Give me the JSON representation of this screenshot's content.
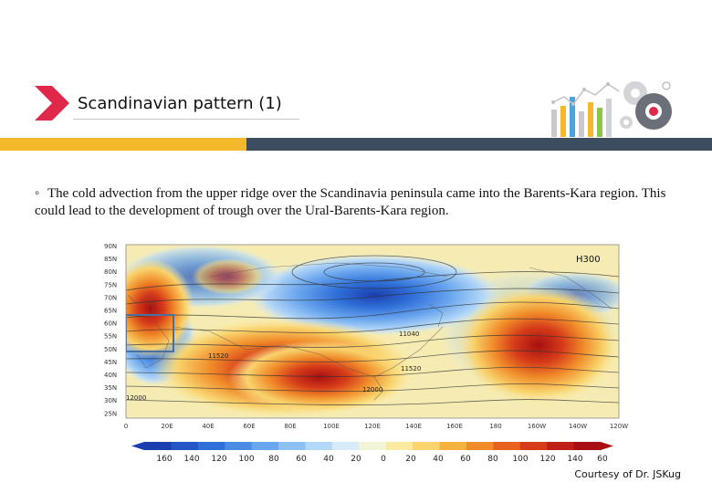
{
  "slide": {
    "title": "Scandinavian pattern (1)",
    "body_bullet": "◦",
    "body_text": "The cold advection from the upper ridge over the Scandinavia peninsula came into the Barents-Kara region. This could lead to the development of trough over the Ural-Barents-Kara region.",
    "courtesy": "Courtesy of Dr. JSKug"
  },
  "figure": {
    "panel_label": "H300",
    "lat_labels": [
      "90N",
      "85N",
      "80N",
      "75N",
      "70N",
      "65N",
      "60N",
      "55N",
      "50N",
      "45N",
      "40N",
      "35N",
      "30N",
      "25N"
    ],
    "lon_labels": [
      "0",
      "20E",
      "40E",
      "60E",
      "80E",
      "100E",
      "120E",
      "140E",
      "160E",
      "180",
      "160W",
      "140W",
      "120W"
    ],
    "contour_labels": [
      "11040",
      "11520",
      "11520",
      "12000",
      "12000"
    ],
    "colorbar_labels": [
      "160",
      "140",
      "120",
      "100",
      "80",
      "60",
      "40",
      "20",
      "0",
      "20",
      "40",
      "60",
      "80",
      "100",
      "120",
      "140",
      "60"
    ],
    "colorbar_colors": [
      "#1b3fae",
      "#2456c6",
      "#2f6fd8",
      "#4a8be4",
      "#6aa6ee",
      "#8dc0f3",
      "#b3d7f7",
      "#d7ebf9",
      "#f3f5d8",
      "#fbeaa0",
      "#f9d36c",
      "#f6b23e",
      "#f08c2a",
      "#e6621e",
      "#d63c19",
      "#bf1f16",
      "#a70f12"
    ],
    "colors": {
      "band_yellow": "#f3b92b",
      "band_navy": "#3b4d5e",
      "title_marker": "#e0284a",
      "highlight_box": "#4a6fa0"
    }
  }
}
